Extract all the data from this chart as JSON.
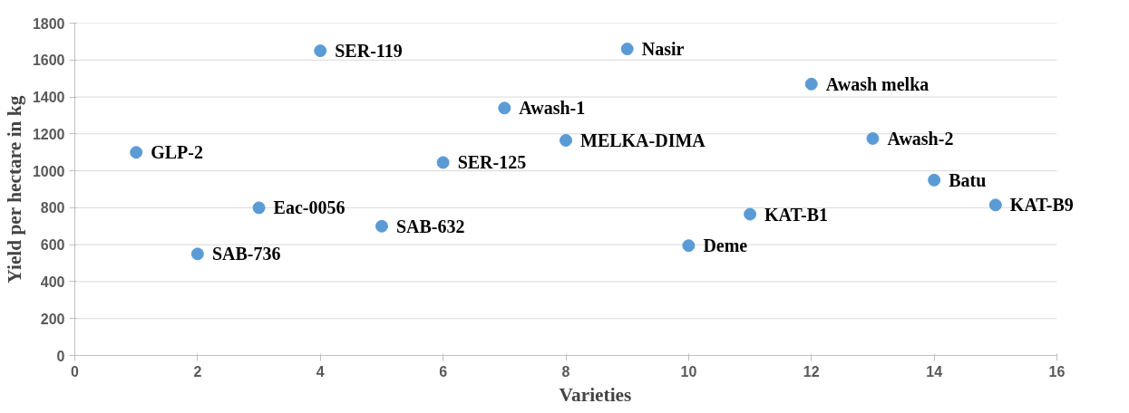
{
  "chart_data": {
    "type": "scatter",
    "xlabel": "Varieties",
    "ylabel": "Yield per hectare in kg",
    "x": [
      1,
      2,
      3,
      4,
      5,
      6,
      7,
      8,
      9,
      10,
      11,
      12,
      13,
      14,
      15
    ],
    "series": [
      {
        "color": "#5b9bd5",
        "values": [
          1100,
          550,
          800,
          1650,
          700,
          1045,
          1340,
          1165,
          1660,
          595,
          765,
          1470,
          1175,
          950,
          815
        ]
      }
    ],
    "annotations": [
      {
        "text": "GLP-2",
        "x": 1,
        "y": 1100
      },
      {
        "text": "SAB-736",
        "x": 2,
        "y": 550
      },
      {
        "text": "Eac-0056",
        "x": 3,
        "y": 800
      },
      {
        "text": "SER-119",
        "x": 4,
        "y": 1650
      },
      {
        "text": "SAB-632",
        "x": 5,
        "y": 700
      },
      {
        "text": "SER-125",
        "x": 6,
        "y": 1045
      },
      {
        "text": "Awash-1",
        "x": 7,
        "y": 1340
      },
      {
        "text": "MELKA-DIMA",
        "x": 8,
        "y": 1165
      },
      {
        "text": "Nasir",
        "x": 9,
        "y": 1660
      },
      {
        "text": "Deme",
        "x": 10,
        "y": 595
      },
      {
        "text": "KAT-B1",
        "x": 11,
        "y": 765
      },
      {
        "text": "Awash melka",
        "x": 12,
        "y": 1470
      },
      {
        "text": "Awash-2",
        "x": 13,
        "y": 1175
      },
      {
        "text": "Batu",
        "x": 14,
        "y": 950
      },
      {
        "text": "KAT-B9",
        "x": 15,
        "y": 815
      }
    ],
    "xlim": [
      0,
      16
    ],
    "xticks": [
      0,
      2,
      4,
      6,
      8,
      10,
      12,
      14,
      16
    ],
    "ylim": [
      0,
      1800
    ],
    "yticks": [
      0,
      200,
      400,
      600,
      800,
      1000,
      1200,
      1400,
      1600,
      1800
    ],
    "grid": "y",
    "marker": "circle"
  }
}
